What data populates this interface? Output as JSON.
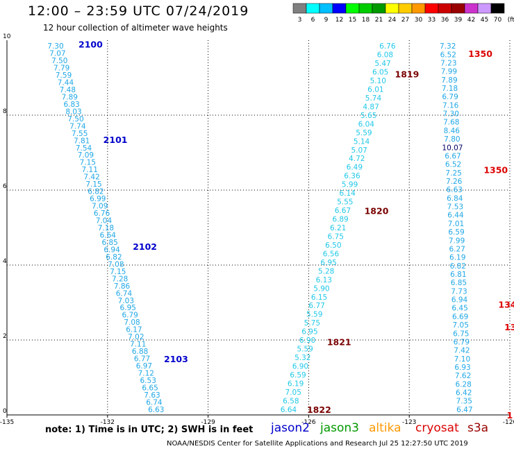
{
  "title": "12:00 – 23:59 UTC 07/24/2019",
  "subtitle": "12 hour collection of altimeter wave heights",
  "note": "note:  1) Time is in UTC;  2) SWH is in feet",
  "credit": "NOAA/NESDIS Center for Satellite Applications and Research   Jul 25 12:27:50 UTC 2019",
  "satellites": [
    {
      "name": "jason2",
      "color": "#0000cc"
    },
    {
      "name": "jason3",
      "color": "#009900"
    },
    {
      "name": "altika",
      "color": "#ff9900"
    },
    {
      "name": "cryosat",
      "color": "#dd0000"
    },
    {
      "name": "s3a",
      "color": "#990000"
    }
  ],
  "colorbar": {
    "labels": [
      "3",
      "6",
      "9",
      "12",
      "15",
      "18",
      "21",
      "24",
      "27",
      "30",
      "33",
      "36",
      "39",
      "42",
      "45",
      "70",
      "(ft)"
    ],
    "colors": [
      "#808080",
      "#00ffff",
      "#00bfff",
      "#0000ff",
      "#00ff00",
      "#00cc00",
      "#009900",
      "#ffff00",
      "#ffcc00",
      "#ff9900",
      "#ff0000",
      "#cc0000",
      "#990000",
      "#cc33cc",
      "#cc99ff",
      "#000000"
    ]
  },
  "chart_data": {
    "type": "scatter",
    "xlim": [
      -135,
      -120
    ],
    "ylim": [
      0,
      10
    ],
    "xticks": [
      "-135",
      "-132",
      "-129",
      "-126",
      "-123",
      "-120"
    ],
    "yticks": [
      "0",
      "2",
      "4",
      "6",
      "8",
      "10"
    ],
    "grid": true,
    "tracks": [
      {
        "color": "#1fa7e6",
        "lon_start": -133.55,
        "lon_end": -130.55,
        "values": [
          "7.30",
          "7.07",
          "7.50",
          "7.79",
          "7.59",
          "7.44",
          "7.48",
          "7.89",
          "6.83",
          "8.03",
          "7.50",
          "7.74",
          "7.55",
          "7.81",
          "7.54",
          "7.09",
          "7.15",
          "7.11",
          "7.42",
          "7.15",
          "6.82",
          "6.99",
          "7.09",
          "6.76",
          "7.04",
          "7.18",
          "6.64",
          "6.85",
          "6.94",
          "6.82",
          "7.08",
          "7.15",
          "7.28",
          "7.86",
          "6.74",
          "7.03",
          "6.95",
          "6.79",
          "7.08",
          "6.17",
          "7.02",
          "7.11",
          "6.88",
          "6.77",
          "6.97",
          "7.12",
          "6.53",
          "6.65",
          "7.63",
          "6.74",
          "6.63"
        ],
        "time_labels": [
          {
            "text": "2100",
            "lat": 9.9,
            "dlon": 0.7,
            "color": "#0000cc"
          },
          {
            "text": "2101",
            "lat": 7.35,
            "dlon": 0.65,
            "color": "#0000cc"
          },
          {
            "text": "2102",
            "lat": 4.5,
            "dlon": 0.65,
            "color": "#0000cc"
          },
          {
            "text": "2103",
            "lat": 1.5,
            "dlon": 0.65,
            "color": "#0000cc"
          }
        ]
      },
      {
        "color": "#1fc8e8",
        "lon_start": -123.65,
        "lon_end": -126.6,
        "values": [
          "6.76",
          "6.08",
          "5.47",
          "6.05",
          "5.10",
          "6.01",
          "5.74",
          "4.87",
          "5.65",
          "6.04",
          "5.59",
          "5.14",
          "5.07",
          "4.72",
          "6.49",
          "6.36",
          "5.99",
          "6.14",
          "5.55",
          "6.67",
          "6.89",
          "6.21",
          "6.75",
          "6.50",
          "6.56",
          "6.95",
          "5.28",
          "6.13",
          "5.90",
          "6.15",
          "6.77",
          "5.59",
          "5.75",
          "6.95",
          "6.90",
          "5.59",
          "5.32",
          "6.90",
          "6.59",
          "6.19",
          "7.05",
          "6.58",
          "6.64"
        ],
        "time_labels": [
          {
            "text": "1819",
            "lat": 9.1,
            "dlon": 0.45,
            "color": "#7a0000"
          },
          {
            "text": "1820",
            "lat": 5.45,
            "dlon": 0.65,
            "color": "#7a0000"
          },
          {
            "text": "1821",
            "lat": 1.95,
            "dlon": 0.6,
            "color": "#7a0000"
          },
          {
            "text": "1822",
            "lat": 0.15,
            "dlon": 0.55,
            "color": "#7a0000"
          }
        ]
      },
      {
        "color": "#1fa7e6",
        "lon_start": -121.85,
        "lon_end": -121.35,
        "values": [
          "7.32",
          "6.52",
          "7.23",
          "7.99",
          "7.89",
          "7.18",
          "6.79",
          "7.16",
          "7.30",
          "7.68",
          "8.46",
          "7.80",
          "10.07",
          "6.67",
          "6.52",
          "7.25",
          "7.26",
          "6.63",
          "6.84",
          "7.53",
          "6.44",
          "7.01",
          "6.59",
          "7.99",
          "6.27",
          "6.19",
          "6.82",
          "6.81",
          "6.85",
          "7.73",
          "6.94",
          "6.45",
          "6.69",
          "7.05",
          "6.75",
          "6.79",
          "7.42",
          "7.10",
          "6.93",
          "7.62",
          "6.28",
          "6.42",
          "7.35",
          "6.47"
        ],
        "special_colors": {
          "12": "#000066"
        },
        "time_labels": [
          {
            "text": "1350",
            "lat": 9.65,
            "dlon": 0.6,
            "color": "#dd0000"
          },
          {
            "text": "1350",
            "lat": 6.55,
            "dlon": 0.9,
            "color": "#dd0000"
          },
          {
            "text": "134",
            "lat": 2.95,
            "dlon": 1.15,
            "color": "#dd0000"
          },
          {
            "text": "134",
            "lat": 2.35,
            "dlon": 1.3,
            "color": "#dd0000"
          },
          {
            "text": "1",
            "lat": 0.0,
            "dlon": 1.25,
            "color": "#dd0000"
          }
        ]
      }
    ]
  }
}
